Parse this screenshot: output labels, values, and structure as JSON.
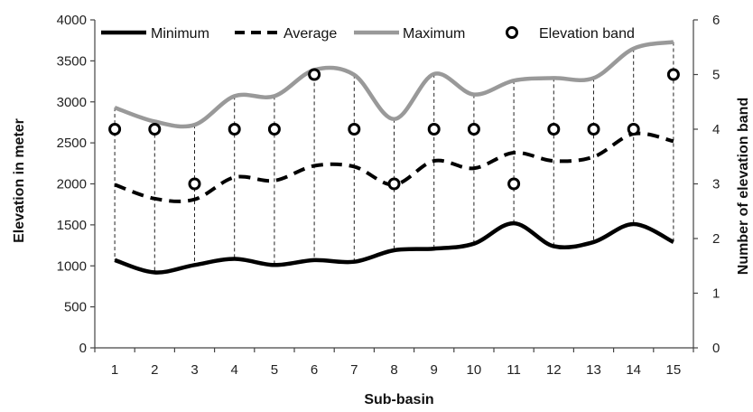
{
  "chart_data": {
    "type": "line",
    "x": [
      1,
      2,
      3,
      4,
      5,
      6,
      7,
      8,
      9,
      10,
      11,
      12,
      13,
      14,
      15
    ],
    "xlabel": "Sub-basin",
    "ylabel": "Elevation in meter",
    "y2label": "Number of elevation band",
    "ylim": [
      0,
      4000
    ],
    "yticks": [
      0,
      500,
      1000,
      1500,
      2000,
      2500,
      3000,
      3500,
      4000
    ],
    "y2lim": [
      0,
      6
    ],
    "y2ticks": [
      0,
      1,
      2,
      3,
      4,
      5,
      6
    ],
    "grid": false,
    "legend_position": "top",
    "series": [
      {
        "name": "Minimum",
        "axis": "left",
        "style": "solid",
        "color": "#000000",
        "values": [
          1070,
          920,
          1010,
          1085,
          1010,
          1070,
          1050,
          1190,
          1210,
          1270,
          1520,
          1240,
          1290,
          1510,
          1290
        ]
      },
      {
        "name": "Average",
        "axis": "left",
        "style": "dashed",
        "color": "#000000",
        "values": [
          1990,
          1820,
          1810,
          2080,
          2040,
          2220,
          2210,
          1990,
          2280,
          2190,
          2380,
          2280,
          2330,
          2610,
          2520
        ]
      },
      {
        "name": "Maximum",
        "axis": "left",
        "style": "solid",
        "color": "#999999",
        "values": [
          2930,
          2760,
          2720,
          3070,
          3070,
          3390,
          3330,
          2790,
          3340,
          3090,
          3260,
          3290,
          3290,
          3650,
          3730
        ]
      },
      {
        "name": "Elevation band",
        "axis": "right",
        "style": "marker",
        "color": "#000000",
        "values": [
          4,
          4,
          3,
          4,
          4,
          5,
          4,
          3,
          4,
          4,
          3,
          4,
          4,
          4,
          5
        ]
      }
    ]
  }
}
